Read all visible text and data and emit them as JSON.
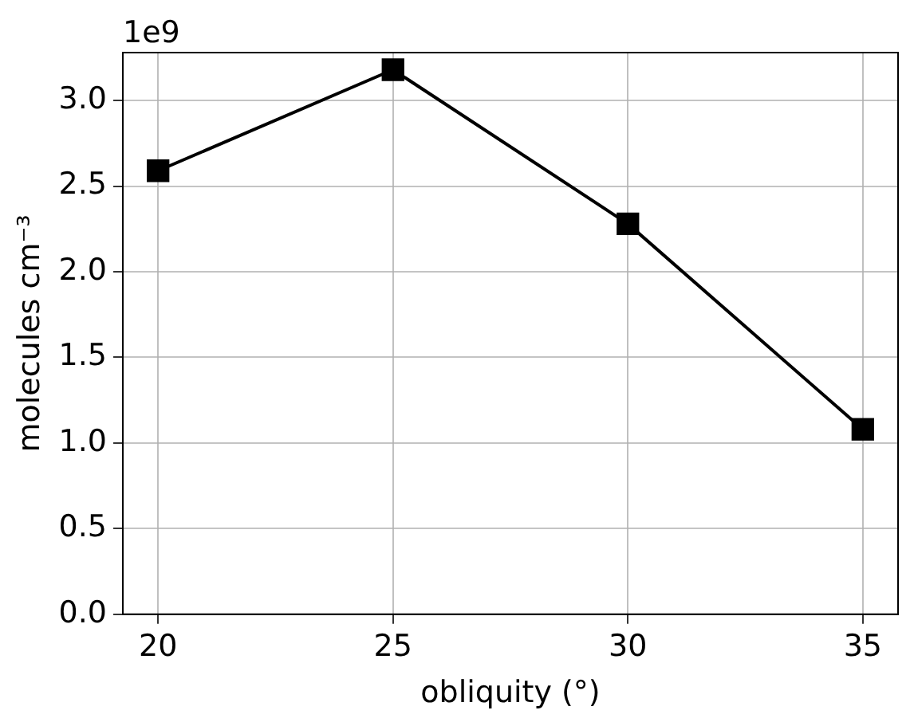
{
  "chart_data": {
    "type": "line",
    "xlabel": "obliquity (°)",
    "ylabel": "molecules cm⁻³",
    "annotations": [
      "1e9"
    ],
    "x": [
      20,
      25,
      30,
      35
    ],
    "values": [
      2.59,
      3.18,
      2.28,
      1.08
    ],
    "color": "#000000",
    "xlim": [
      19.25,
      35.75
    ],
    "ylim": [
      0,
      3.28
    ],
    "xticks": [
      20,
      25,
      30,
      35
    ],
    "yticks": [
      {
        "value": 0,
        "label": "0.0"
      },
      {
        "value": 0.5,
        "label": "0.5"
      },
      {
        "value": 1,
        "label": "1.0"
      },
      {
        "value": 1.5,
        "label": "1.5"
      },
      {
        "value": 2,
        "label": "2.0"
      },
      {
        "value": 2.5,
        "label": "2.5"
      },
      {
        "value": 3,
        "label": "3.0"
      }
    ],
    "grid": true,
    "marker": "square",
    "line_style": "solid"
  }
}
